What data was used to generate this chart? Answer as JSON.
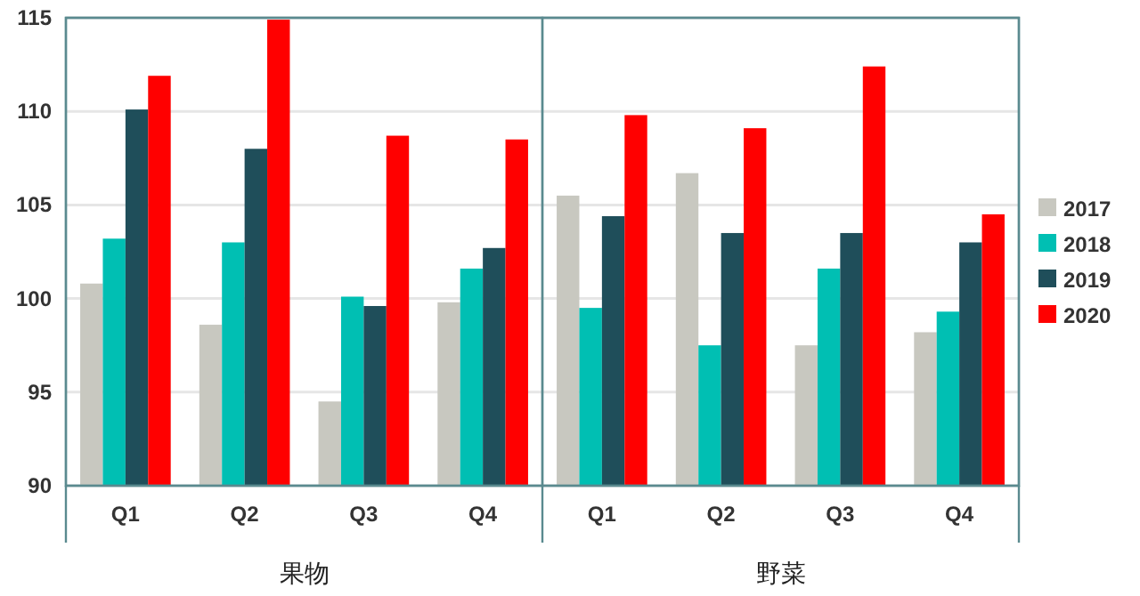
{
  "chart_data": {
    "type": "bar",
    "categories": [
      "Q1",
      "Q2",
      "Q3",
      "Q4",
      "Q1",
      "Q2",
      "Q3",
      "Q4"
    ],
    "series": [
      {
        "name": "2017",
        "color": "#c8c8c0",
        "values": [
          100.8,
          98.6,
          94.5,
          99.8,
          105.5,
          106.7,
          97.5,
          98.2
        ]
      },
      {
        "name": "2018",
        "color": "#00bfb3",
        "values": [
          103.2,
          103.0,
          100.1,
          101.6,
          99.5,
          97.5,
          101.6,
          99.3
        ]
      },
      {
        "name": "2019",
        "color": "#1f4e5a",
        "values": [
          110.1,
          108.0,
          99.6,
          102.7,
          104.4,
          103.5,
          103.5,
          103.0
        ]
      },
      {
        "name": "2020",
        "color": "#ff0000",
        "values": [
          111.9,
          114.9,
          108.7,
          108.5,
          109.8,
          109.1,
          112.4,
          104.5
        ]
      }
    ],
    "annotations": [
      "果物",
      "野菜"
    ],
    "ylim": [
      90,
      115
    ],
    "yticks": [
      90,
      95,
      100,
      105,
      110,
      115
    ],
    "grid": "y",
    "legend": "right"
  }
}
